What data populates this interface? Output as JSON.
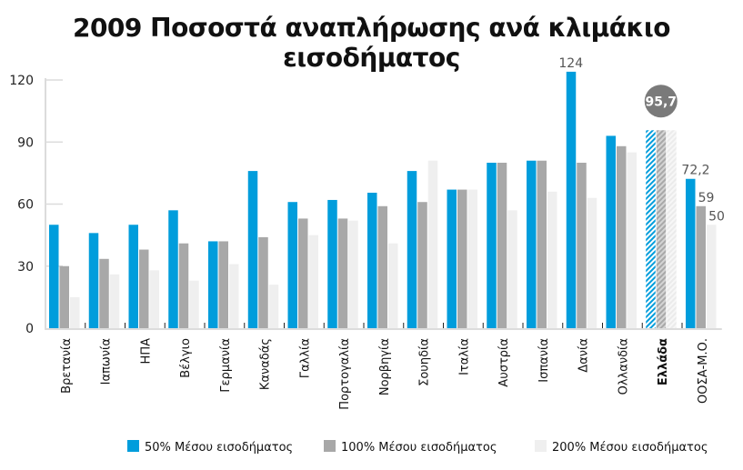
{
  "chart_data": {
    "type": "bar",
    "title": "2009 Ποσοστά αναπλήρωσης ανά κλιμάκιο εισοδήματος",
    "xlabel": "",
    "ylabel": "",
    "ylim": [
      0,
      120
    ],
    "yticks": [
      0,
      30,
      60,
      90,
      120
    ],
    "grid": false,
    "legend_position": "bottom",
    "categories": [
      "Βρετανία",
      "Ιαπωνία",
      "ΗΠΑ",
      "Βέλγιο",
      "Γερμανία",
      "Καναδάς",
      "Γαλλία",
      "Πορτογαλία",
      "Νορβηγία",
      "Σουηδία",
      "Ιταλία",
      "Αυστρία",
      "Ισπανία",
      "Δανία",
      "Ολλανδία",
      "Ελλάδα",
      "ΟΟΣΑ-Μ.Ο."
    ],
    "highlight_category": "Ελλάδα",
    "series": [
      {
        "name": "50% Μέσου εισοδήματος",
        "color": "#009ddc",
        "values": [
          50,
          46,
          50,
          57,
          42,
          76,
          61,
          62,
          65.5,
          76,
          67,
          80,
          81,
          124,
          93,
          95.7,
          72.2
        ]
      },
      {
        "name": "100% Μέσου εισοδήματος",
        "color": "#a8a8a8",
        "values": [
          30,
          33.5,
          38,
          41,
          42,
          44,
          53,
          53,
          59,
          61,
          67,
          80,
          81,
          80,
          88,
          95.7,
          59
        ]
      },
      {
        "name": "200% Μέσου εισοδήματος",
        "color": "#efefef",
        "values": [
          15,
          26,
          28,
          23,
          31,
          21,
          45,
          52,
          41,
          81,
          67,
          57,
          66,
          63,
          85,
          95.7,
          50
        ]
      }
    ],
    "data_labels": [
      {
        "category": "Δανία",
        "series": 0,
        "text": "124"
      },
      {
        "category": "Ελλάδα",
        "series": 1,
        "text": "95,7",
        "style": "circle"
      },
      {
        "category": "ΟΟΣΑ-Μ.Ο.",
        "series": 0,
        "text": "72,2"
      },
      {
        "category": "ΟΟΣΑ-Μ.Ο.",
        "series": 1,
        "text": "59"
      },
      {
        "category": "ΟΟΣΑ-Μ.Ο.",
        "series": 2,
        "text": "50"
      }
    ]
  }
}
